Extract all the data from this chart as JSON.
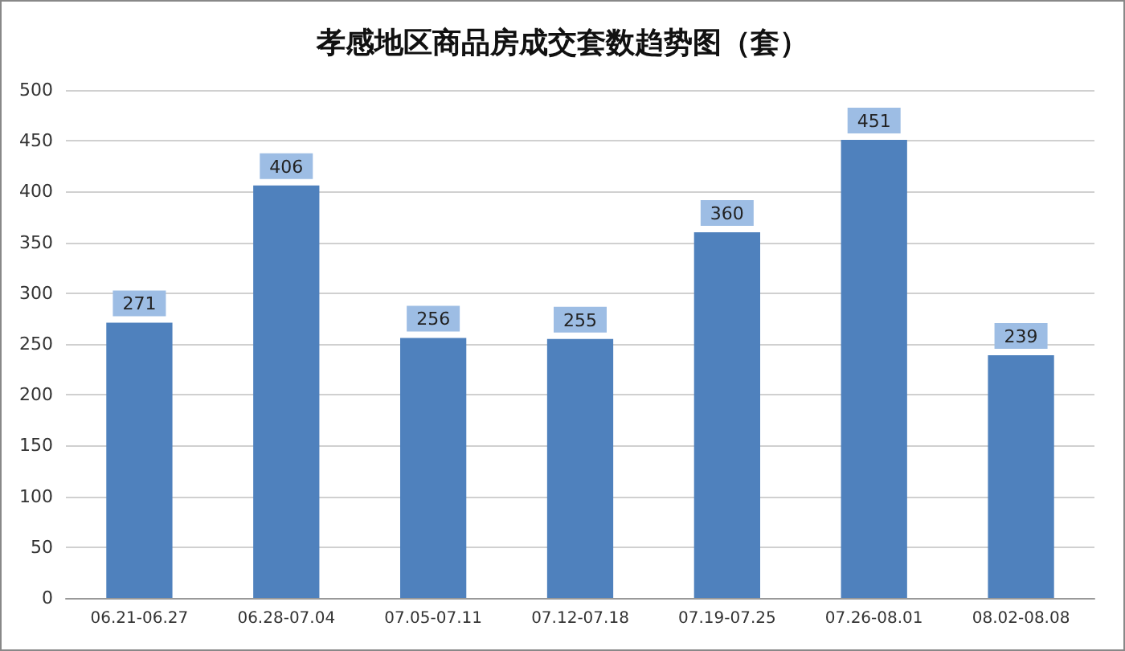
{
  "chart_data": {
    "type": "bar",
    "title": "孝感地区商品房成交套数趋势图（套）",
    "categories": [
      "06.21-06.27",
      "06.28-07.04",
      "07.05-07.11",
      "07.12-07.18",
      "07.19-07.25",
      "07.26-08.01",
      "08.02-08.08"
    ],
    "values": [
      271,
      406,
      256,
      255,
      360,
      451,
      239
    ],
    "color": "#4f81bd",
    "ylim": [
      0,
      500
    ],
    "yticks": [
      0,
      50,
      100,
      150,
      200,
      250,
      300,
      350,
      400,
      450,
      500
    ],
    "grid": "y",
    "data_labels": true
  }
}
